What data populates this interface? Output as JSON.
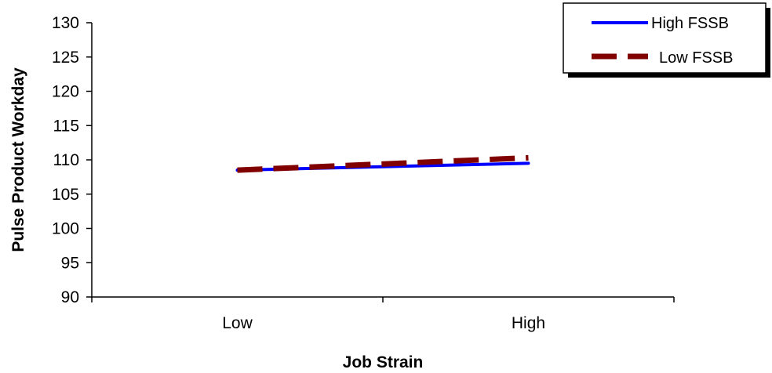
{
  "chart_data": {
    "type": "line",
    "title": "",
    "xlabel": "Job Strain",
    "ylabel": "Pulse Product Workday",
    "categories": [
      "Low",
      "High"
    ],
    "ylim": [
      90,
      130
    ],
    "yticks": [
      90,
      95,
      100,
      105,
      110,
      115,
      120,
      125,
      130
    ],
    "grid": false,
    "legend_position": "top-right",
    "series": [
      {
        "name": "High FSSB",
        "values": [
          108.5,
          109.5
        ],
        "color": "#0000ff",
        "line_style": "solid"
      },
      {
        "name": "Low FSSB",
        "values": [
          108.5,
          110.3
        ],
        "color": "#800000",
        "line_style": "dashed"
      }
    ]
  }
}
